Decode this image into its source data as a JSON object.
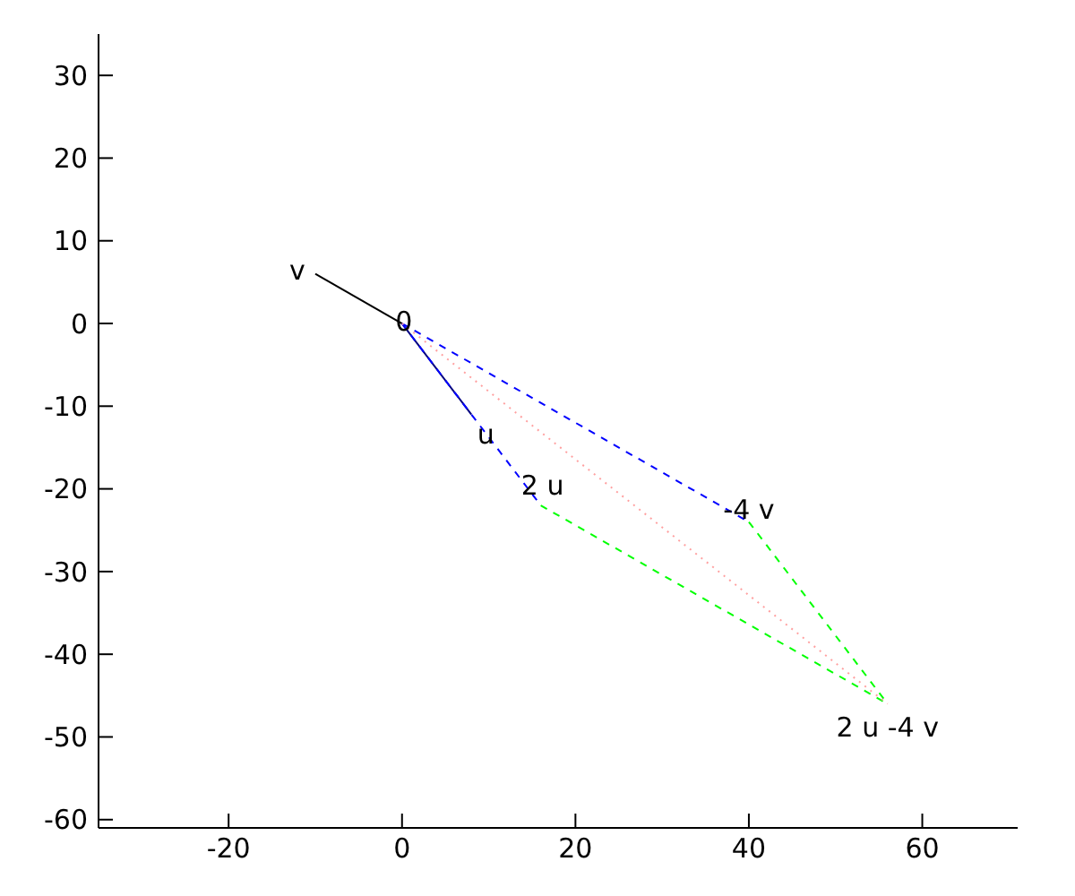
{
  "chart_data": {
    "type": "line",
    "xlim": [
      -35,
      71
    ],
    "ylim": [
      -61,
      35
    ],
    "xticks": [
      -20,
      0,
      20,
      40,
      60
    ],
    "yticks": [
      -60,
      -50,
      -40,
      -30,
      -20,
      -10,
      0,
      10,
      20,
      30
    ],
    "grid": false,
    "legend": false,
    "marker": "none",
    "series": [
      {
        "color": "#000000",
        "x": [
          0,
          -10
        ],
        "values": [
          0,
          6
        ],
        "line_style": "solid"
      },
      {
        "color": "#000080",
        "x": [
          0,
          8
        ],
        "values": [
          0,
          -11
        ],
        "line_style": "solid"
      },
      {
        "color": "#0000ff",
        "x": [
          0,
          16
        ],
        "values": [
          0,
          -22
        ],
        "line_style": "dashed"
      },
      {
        "color": "#0000ff",
        "x": [
          0,
          40
        ],
        "values": [
          0,
          -24
        ],
        "line_style": "dashed"
      },
      {
        "color": "#00ff00",
        "x": [
          16,
          56
        ],
        "values": [
          -22,
          -46
        ],
        "line_style": "dashed"
      },
      {
        "color": "#00ff00",
        "x": [
          40,
          56
        ],
        "values": [
          -24,
          -46
        ],
        "line_style": "dashed"
      },
      {
        "color": "#ffa0a0",
        "x": [
          0,
          56
        ],
        "values": [
          0,
          -46
        ],
        "line_style": "dotted"
      }
    ],
    "annotations": [
      {
        "text": "v",
        "x": -10,
        "y": 6
      },
      {
        "text": "0",
        "x": 0,
        "y": 0
      },
      {
        "text": "u",
        "x": 8,
        "y": -11
      },
      {
        "text": "2 u",
        "x": 16,
        "y": -22
      },
      {
        "text": "-4 v",
        "x": 40,
        "y": -24
      },
      {
        "text": "2 u -4 v",
        "x": 56,
        "y": -46
      }
    ]
  }
}
